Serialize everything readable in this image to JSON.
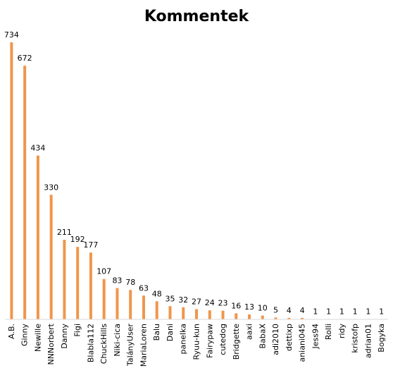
{
  "chart_data": {
    "type": "bar",
    "title": "Kommentek",
    "xlabel": "",
    "ylabel": "",
    "ylim": [
      0,
      734
    ],
    "grid": false,
    "legend": "none",
    "bar_color": "#F0964B",
    "categories": [
      "A.B.",
      "Ginny",
      "Newille",
      "NNNorbert",
      "Danny",
      "Figi",
      "Blabla112",
      "ChuckHills",
      "Niki-cica",
      "TalányUser",
      "MariaLoren",
      "Balu",
      "Dani",
      "panelka",
      "Ryuu-kun",
      "Fairypaw",
      "cutedog",
      "Bridgette",
      "aaxi",
      "BabaX",
      "adi2010",
      "dettixp",
      "aniani045",
      "Jess94",
      "Rolli",
      "ridy",
      "kristofp",
      "adrian01",
      "Bogyka"
    ],
    "values": [
      734,
      672,
      434,
      330,
      211,
      192,
      177,
      107,
      83,
      78,
      63,
      48,
      35,
      32,
      27,
      24,
      23,
      16,
      13,
      10,
      5,
      4,
      4,
      1,
      1,
      1,
      1,
      1,
      1
    ]
  }
}
